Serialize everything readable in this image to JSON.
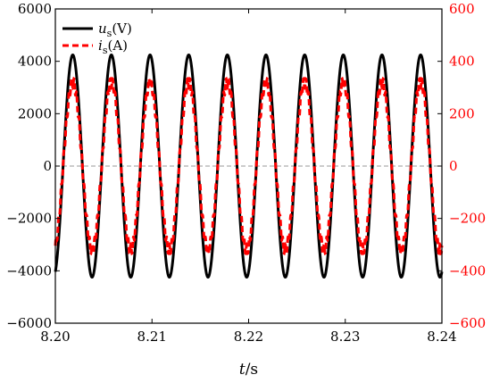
{
  "chart_data": {
    "type": "line",
    "title": "",
    "xlabel": {
      "var": "t",
      "unit": "/s"
    },
    "ylabel_left": "",
    "ylabel_right": "",
    "xlim": [
      8.2,
      8.24
    ],
    "ylim_left": [
      -6000,
      6000
    ],
    "ylim_right": [
      -600,
      600
    ],
    "x_ticks": [
      "8.20",
      "8.21",
      "8.22",
      "8.23",
      "8.24"
    ],
    "y_ticks_left": [
      "−6000",
      "−4000",
      "−2000",
      "0",
      "2000",
      "4000",
      "6000"
    ],
    "y_ticks_right": [
      "−600",
      "−400",
      "−200",
      "0",
      "200",
      "400",
      "600"
    ],
    "zero_line": true,
    "legend_position": "top-left",
    "series": [
      {
        "name": "us(V)",
        "label_main": "u",
        "label_sub": "s",
        "label_unit": "(V)",
        "axis": "left",
        "style": "solid",
        "color": "#000000",
        "amplitude": 4243,
        "frequency_hz": 250,
        "phase_deg": -72
      },
      {
        "name": "is(A)",
        "label_main": "i",
        "label_sub": "s",
        "label_unit": "(A)",
        "axis": "right",
        "style": "dashed",
        "color": "#ff0000",
        "amplitude": 320,
        "frequency_hz": 250,
        "phase_deg": -72,
        "ripple_amplitude": 20,
        "ripple_frequency_hz": 3750
      }
    ],
    "colors": {
      "left_axis": "#000000",
      "right_axis": "#ff0000",
      "zero_line": "#999999"
    }
  }
}
